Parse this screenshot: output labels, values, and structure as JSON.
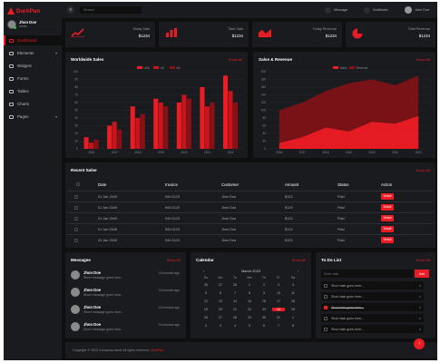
{
  "brand": {
    "name": "DarkPan"
  },
  "user": {
    "name": "Jhon Doe",
    "role": "Admin"
  },
  "nav": [
    {
      "label": "Dashboard",
      "icon": "dashboard-icon",
      "active": true
    },
    {
      "label": "Elements",
      "icon": "laptop-icon",
      "has_chevron": true
    },
    {
      "label": "Widgets",
      "icon": "th-icon"
    },
    {
      "label": "Forms",
      "icon": "keyboard-icon"
    },
    {
      "label": "Tables",
      "icon": "table-icon"
    },
    {
      "label": "Charts",
      "icon": "chart-icon"
    },
    {
      "label": "Pages",
      "icon": "file-icon",
      "has_chevron": true
    }
  ],
  "topbar": {
    "search_placeholder": "Search",
    "message_label": "Message",
    "notification_label": "Notificatin",
    "user_label": "John Doe"
  },
  "stats": [
    {
      "label": "Today Sale",
      "value": "$1234",
      "icon": "line-chart-icon"
    },
    {
      "label": "Total Sale",
      "value": "$1234",
      "icon": "bar-chart-icon"
    },
    {
      "label": "Today Revenue",
      "value": "$1234",
      "icon": "area-chart-icon"
    },
    {
      "label": "Total Revenue",
      "value": "$1234",
      "icon": "pie-chart-icon"
    }
  ],
  "worldwide": {
    "title": "Worldwide Sales",
    "link": "Show All",
    "legend": [
      "USA",
      "UK",
      "AU"
    ]
  },
  "salesrev": {
    "title": "Salse & Revenue",
    "link": "Show All",
    "legend": [
      "Sales",
      "Revenue"
    ]
  },
  "chart_data": [
    {
      "type": "bar",
      "title": "Worldwide Sales",
      "categories": [
        "2016",
        "2017",
        "2018",
        "2019",
        "2020",
        "2021",
        "2022"
      ],
      "series": [
        {
          "name": "USA",
          "values": [
            15,
            30,
            55,
            65,
            60,
            80,
            95
          ]
        },
        {
          "name": "UK",
          "values": [
            8,
            35,
            40,
            60,
            70,
            55,
            75
          ]
        },
        {
          "name": "AU",
          "values": [
            12,
            25,
            45,
            55,
            65,
            60,
            60
          ]
        }
      ],
      "ylim": [
        0,
        100
      ],
      "yticks": [
        0,
        10,
        20,
        30,
        40,
        50,
        60,
        70,
        80,
        90,
        100
      ],
      "colors": [
        "#eb1c24",
        "#c8141b",
        "#8a1015"
      ],
      "legend_position": "top-center"
    },
    {
      "type": "area",
      "title": "Salse & Revenue",
      "categories": [
        "2016",
        "2017",
        "2018",
        "2019",
        "2020",
        "2021",
        "2022"
      ],
      "series": [
        {
          "name": "Sales",
          "values": [
            15,
            30,
            55,
            45,
            70,
            65,
            85
          ]
        },
        {
          "name": "Revenue",
          "values": [
            100,
            120,
            150,
            170,
            180,
            165,
            190
          ]
        }
      ],
      "ylim": [
        0,
        200
      ],
      "yticks": [
        0,
        20,
        40,
        60,
        80,
        100,
        120,
        140,
        160,
        180,
        200
      ],
      "colors": [
        "#eb1c24",
        "#8a1015"
      ],
      "legend_position": "top-center"
    }
  ],
  "recent": {
    "title": "Recent Salse",
    "link": "Show All",
    "columns": [
      "Date",
      "Invoice",
      "Customer",
      "Amount",
      "Status",
      "Action"
    ],
    "rows": [
      {
        "date": "01 Jan 2045",
        "invoice": "INV-0123",
        "customer": "Jhon Doe",
        "amount": "$123",
        "status": "Paid",
        "action": "Detail"
      },
      {
        "date": "01 Jan 2045",
        "invoice": "INV-0123",
        "customer": "Jhon Doe",
        "amount": "$123",
        "status": "Paid",
        "action": "Detail"
      },
      {
        "date": "01 Jan 2045",
        "invoice": "INV-0123",
        "customer": "Jhon Doe",
        "amount": "$123",
        "status": "Paid",
        "action": "Detail"
      },
      {
        "date": "01 Jan 2045",
        "invoice": "INV-0123",
        "customer": "Jhon Doe",
        "amount": "$123",
        "status": "Paid",
        "action": "Detail"
      },
      {
        "date": "01 Jan 2045",
        "invoice": "INV-0123",
        "customer": "Jhon Doe",
        "amount": "$123",
        "status": "Paid",
        "action": "Detail"
      }
    ]
  },
  "messages": {
    "title": "Messages",
    "link": "Show All",
    "items": [
      {
        "name": "Jhon Doe",
        "text": "Short message goes here...",
        "time": "15 minutes ago"
      },
      {
        "name": "Jhon Doe",
        "text": "Short message goes here...",
        "time": "15 minutes ago"
      },
      {
        "name": "Jhon Doe",
        "text": "Short message goes here...",
        "time": "15 minutes ago"
      },
      {
        "name": "Jhon Doe",
        "text": "Short message goes here...",
        "time": "15 minutes ago"
      }
    ]
  },
  "calendar": {
    "title": "Calendar",
    "link": "Show All",
    "month": "March 2023",
    "weekdays": [
      "Su",
      "Mo",
      "Tu",
      "We",
      "Th",
      "Fr",
      "Sa"
    ],
    "weeks": [
      [
        "26",
        "27",
        "28",
        "1",
        "2",
        "3",
        "4"
      ],
      [
        "5",
        "6",
        "7",
        "8",
        "9",
        "10",
        "11"
      ],
      [
        "12",
        "13",
        "14",
        "15",
        "16",
        "17",
        "18"
      ],
      [
        "19",
        "20",
        "21",
        "22",
        "23",
        "24",
        "25"
      ],
      [
        "26",
        "27",
        "28",
        "29",
        "30",
        "31",
        "1"
      ],
      [
        "2",
        "3",
        "4",
        "5",
        "6",
        "7",
        "8"
      ]
    ],
    "selected": "24"
  },
  "todo": {
    "title": "To Do List",
    "link": "Show All",
    "input_placeholder": "Enter task",
    "add_label": "Add",
    "items": [
      {
        "text": "Short task goes here...",
        "done": false
      },
      {
        "text": "Short task goes here...",
        "done": false
      },
      {
        "text": "Short task goes here...",
        "done": true
      },
      {
        "text": "Short task goes here...",
        "done": false
      },
      {
        "text": "Short task goes here...",
        "done": false
      }
    ]
  },
  "footer": {
    "copyright": "Copyright © 2023 Company name All rights reserved.",
    "link": "DarkPan"
  },
  "colors": {
    "accent": "#eb1c24",
    "panel": "#191b1f",
    "background": "#0f0f0f"
  }
}
